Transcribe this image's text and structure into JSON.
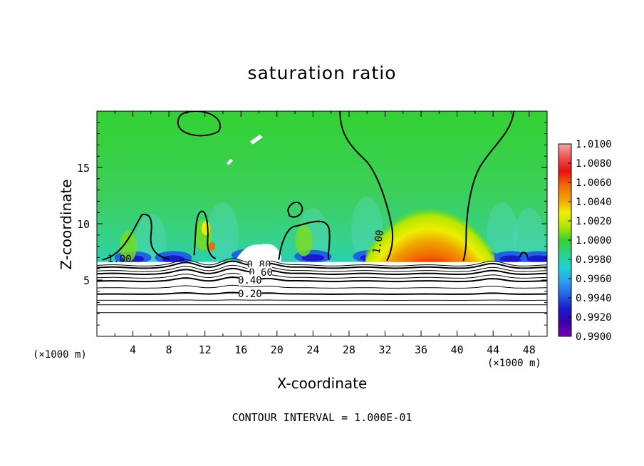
{
  "chart_data": {
    "type": "heatmap",
    "title": "saturation ratio",
    "xlabel": "X-coordinate",
    "ylabel": "Z-coordinate",
    "x_unit_left": "(×1000 m)",
    "x_unit_right": "(×1000 m)",
    "footer": "CONTOUR INTERVAL = 1.000E-01",
    "xlim": [
      0,
      50
    ],
    "ylim": [
      0,
      20
    ],
    "x_ticks": [
      4,
      8,
      12,
      16,
      20,
      24,
      28,
      32,
      36,
      40,
      44,
      48
    ],
    "y_ticks": [
      5,
      10,
      15
    ],
    "colorbar": {
      "min": 0.99,
      "max": 1.01,
      "tick_labels": [
        "1.0100",
        "1.0080",
        "1.0060",
        "1.0040",
        "1.0020",
        "1.0000",
        "0.9980",
        "0.9960",
        "0.9940",
        "0.9920",
        "0.9900"
      ],
      "colors": [
        "#f4a6a6",
        "#f05050",
        "#e81010",
        "#f06a00",
        "#f0a000",
        "#eeee00",
        "#b4e600",
        "#32d232",
        "#2ad28a",
        "#1ed2d2",
        "#2ea0f0",
        "#2460e6",
        "#1a1acc",
        "#3a00a8",
        "#7a00b4"
      ]
    },
    "contour_labels": [
      {
        "text": "1.00",
        "x": 2.5,
        "z": 6.9
      },
      {
        "text": "1.00",
        "x": 31.2,
        "z": 8.4
      },
      {
        "text": "0.80",
        "x": 18.0,
        "z": 6.4
      },
      {
        "text": "0.60",
        "x": 18.2,
        "z": 5.7
      },
      {
        "text": "0.40",
        "x": 17.0,
        "z": 5.0
      },
      {
        "text": "0.20",
        "x": 17.0,
        "z": 3.8
      }
    ],
    "contour_levels_below": [
      {
        "level": 0.2,
        "z": 3.75
      },
      {
        "level": 0.4,
        "z": 4.9
      },
      {
        "level": 0.6,
        "z": 5.55
      },
      {
        "level": 0.8,
        "z": 6.1
      }
    ],
    "thin_contours_z": [
      2.1,
      2.8,
      3.2,
      4.3,
      5.2,
      5.8,
      6.3
    ],
    "supersaturated_plume": {
      "x_center": 37,
      "x_left": 32.5,
      "x_right": 41,
      "z_base": 6.7,
      "z_top": 10.5,
      "peak_value": 1.01
    },
    "cloud_base_z": 6.6
  }
}
